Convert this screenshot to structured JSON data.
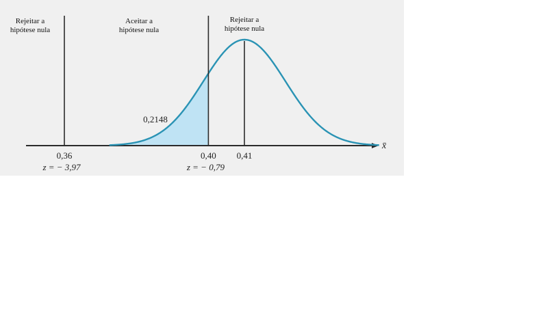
{
  "regions": {
    "left": {
      "line1": "Rejeitar a",
      "line2": "hipótese nula"
    },
    "middle": {
      "line1": "Aceitar a",
      "line2": "hipótese nula"
    },
    "right": {
      "line1": "Rejeitar a",
      "line2": "hipótese nula"
    }
  },
  "colors": {
    "curve": "#2a93b4",
    "shade": "#bfe3f4",
    "axis": "#2b2b2b",
    "panel": "#f0f0f0"
  },
  "chart_data": {
    "type": "area",
    "distribution": "normal",
    "mean": 0.41,
    "xlabel": "x̄",
    "xlim": [
      0.355,
      0.435
    ],
    "critical_values": [
      {
        "x": 0.36,
        "tick_label": "0,36",
        "z_label": "z = − 3,97"
      },
      {
        "x": 0.4,
        "tick_label": "0,40",
        "z_label": "z = − 0,79"
      }
    ],
    "mean_line": {
      "x": 0.41,
      "tick_label": "0,41"
    },
    "shaded_area": {
      "from": 0.375,
      "to": 0.4,
      "label": "0,2148"
    }
  }
}
